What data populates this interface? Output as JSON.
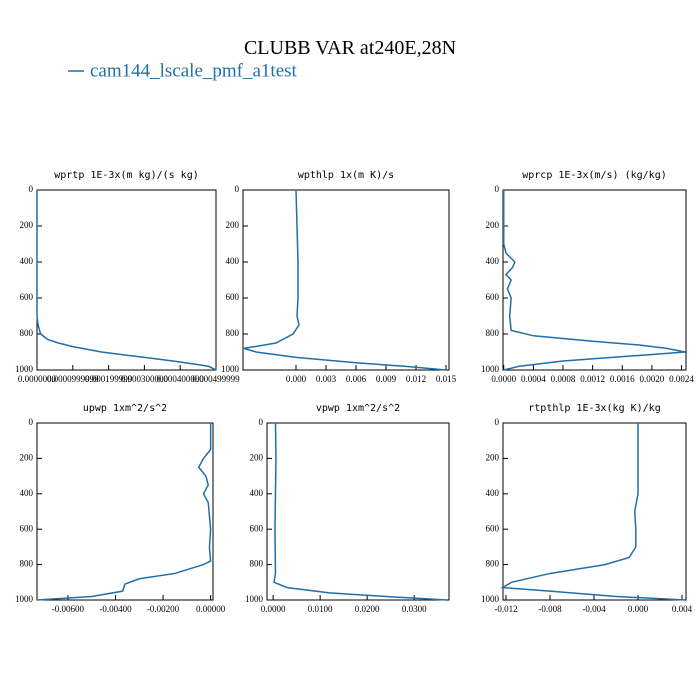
{
  "title": "CLUBB VAR at240E,28N",
  "chart_data": [
    {
      "type": "line",
      "title": "wprtp  1E-3x(m kg)/(s kg)",
      "xlim": [
        0,
        0.0005
      ],
      "ylim": [
        0,
        1000
      ],
      "xticks": [
        {
          "value": 0,
          "label": "0.0000000"
        },
        {
          "value": 0.0001,
          "label": "0.0000999999"
        },
        {
          "value": 0.0002,
          "label": "0.000199999"
        },
        {
          "value": 0.0003,
          "label": "0.000300000"
        },
        {
          "value": 0.0004,
          "label": "0.000400000"
        },
        {
          "value": 0.0005,
          "label": "0.000499999"
        }
      ],
      "yticks": [
        0,
        200,
        400,
        600,
        800,
        1000
      ],
      "series": [
        {
          "name": "cam144_lscale_pmf_a1test",
          "color": "#1f6fa8",
          "x": [
            0,
            0,
            0,
            0,
            0,
            0,
            0,
            0,
            3e-06,
            1e-05,
            3e-05,
            6e-05,
            0.0001,
            0.00018,
            0.0003,
            0.00038,
            0.00045,
            0.00048,
            0.00049,
            0.0005
          ],
          "y": [
            0,
            100,
            200,
            300,
            400,
            500,
            600,
            700,
            750,
            800,
            830,
            850,
            870,
            900,
            930,
            950,
            970,
            980,
            990,
            1000
          ]
        }
      ]
    },
    {
      "type": "line",
      "title": "wpthlp  1x(m K)/s",
      "xlim": [
        -0.0053,
        0.0153
      ],
      "ylim": [
        0,
        1000
      ],
      "xticks": [
        {
          "value": 0,
          "label": "0.000"
        },
        {
          "value": 0.003,
          "label": "0.003"
        },
        {
          "value": 0.006,
          "label": "0.006"
        },
        {
          "value": 0.009,
          "label": "0.009"
        },
        {
          "value": 0.012,
          "label": "0.012"
        },
        {
          "value": 0.015,
          "label": "0.015"
        }
      ],
      "yticks": [
        0,
        200,
        400,
        600,
        800,
        1000
      ],
      "series": [
        {
          "name": "cam144_lscale_pmf_a1test",
          "color": "#1f6fa8",
          "x": [
            0,
            0.0001,
            0.0002,
            0.0002,
            0.0001,
            0.0003,
            -0.0003,
            -0.002,
            -0.0052,
            -0.004,
            0,
            0.006,
            0.011,
            0.015
          ],
          "y": [
            0,
            200,
            400,
            600,
            700,
            750,
            800,
            850,
            880,
            900,
            930,
            960,
            980,
            1000
          ]
        }
      ]
    },
    {
      "type": "line",
      "title": "wprcp  1E-3x(m/s) (kg/kg)",
      "xlim": [
        -1e-05,
        0.00246
      ],
      "ylim": [
        0,
        1000
      ],
      "xticks": [
        {
          "value": 0,
          "label": "0.0000"
        },
        {
          "value": 0.0004,
          "label": "0.0004"
        },
        {
          "value": 0.0008,
          "label": "0.0008"
        },
        {
          "value": 0.0012,
          "label": "0.0012"
        },
        {
          "value": 0.0016,
          "label": "0.0016"
        },
        {
          "value": 0.002,
          "label": "0.0020"
        },
        {
          "value": 0.0024,
          "label": "0.0024"
        }
      ],
      "yticks": [
        0,
        200,
        400,
        600,
        800,
        1000
      ],
      "series": [
        {
          "name": "cam144_lscale_pmf_a1test",
          "color": "#1f6fa8",
          "x": [
            0,
            0,
            3e-05,
            0.00015,
            0.00012,
            3e-05,
            0.0001,
            5e-05,
            0.0001,
            8e-05,
            0.0001,
            0.0004,
            0.0012,
            0.0018,
            0.0022,
            0.00245,
            0.0018,
            0.0008,
            0.0002,
            0
          ],
          "y": [
            0,
            300,
            350,
            400,
            430,
            470,
            500,
            550,
            600,
            700,
            780,
            810,
            840,
            860,
            880,
            900,
            920,
            950,
            980,
            1000
          ]
        }
      ]
    },
    {
      "type": "line",
      "title": "upwp  1xm^2/s^2",
      "xlim": [
        -0.0073,
        0.0001
      ],
      "ylim": [
        0,
        1000
      ],
      "xticks": [
        {
          "value": -0.006,
          "label": "-0.00600"
        },
        {
          "value": -0.004,
          "label": "-0.00400"
        },
        {
          "value": -0.002,
          "label": "-0.00200"
        },
        {
          "value": 0,
          "label": "0.00000"
        }
      ],
      "yticks": [
        0,
        200,
        400,
        600,
        800,
        1000
      ],
      "series": [
        {
          "name": "cam144_lscale_pmf_a1test",
          "color": "#1f6fa8",
          "x": [
            0,
            0,
            -0.0003,
            -0.0005,
            -0.0002,
            -0.0001,
            -0.0003,
            -0.0001,
            0,
            -5e-05,
            0,
            -0.0003,
            -0.0015,
            -0.003,
            -0.0036,
            -0.0037,
            -0.005,
            -0.0073
          ],
          "y": [
            0,
            150,
            200,
            250,
            300,
            350,
            400,
            450,
            600,
            700,
            780,
            800,
            850,
            880,
            910,
            950,
            980,
            1000
          ]
        }
      ]
    },
    {
      "type": "line",
      "title": "vpwp  1xm^2/s^2",
      "xlim": [
        -0.0013,
        0.0374
      ],
      "ylim": [
        0,
        1000
      ],
      "xticks": [
        {
          "value": 0,
          "label": "0.0000"
        },
        {
          "value": 0.01,
          "label": "0.0100"
        },
        {
          "value": 0.02,
          "label": "0.0200"
        },
        {
          "value": 0.03,
          "label": "0.0300"
        }
      ],
      "yticks": [
        0,
        200,
        400,
        600,
        800,
        1000
      ],
      "series": [
        {
          "name": "cam144_lscale_pmf_a1test",
          "color": "#1f6fa8",
          "x": [
            0.0005,
            0.0006,
            0.0005,
            0.0004,
            0.0005,
            0.0002,
            0.003,
            0.012,
            0.024,
            0.037
          ],
          "y": [
            0,
            200,
            400,
            600,
            850,
            900,
            930,
            960,
            980,
            1000
          ]
        }
      ]
    },
    {
      "type": "line",
      "title": "rtpthlp  1E-3x(kg K)/kg",
      "xlim": [
        -0.01227,
        0.00436
      ],
      "ylim": [
        0,
        1000
      ],
      "xticks": [
        {
          "value": -0.012,
          "label": "-0.012"
        },
        {
          "value": -0.008,
          "label": "-0.008"
        },
        {
          "value": -0.004,
          "label": "-0.004"
        },
        {
          "value": 0,
          "label": "0.000"
        },
        {
          "value": 0.004,
          "label": "0.004"
        }
      ],
      "yticks": [
        0,
        200,
        400,
        600,
        800,
        1000
      ],
      "series": [
        {
          "name": "cam144_lscale_pmf_a1test",
          "color": "#1f6fa8",
          "x": [
            0,
            0,
            -0.0003,
            -0.0002,
            -0.0002,
            -0.0008,
            -0.003,
            -0.008,
            -0.0115,
            -0.0123,
            -0.008,
            -0.002,
            0.0043
          ],
          "y": [
            0,
            400,
            500,
            600,
            700,
            760,
            800,
            850,
            900,
            930,
            950,
            980,
            1000
          ]
        }
      ]
    }
  ]
}
